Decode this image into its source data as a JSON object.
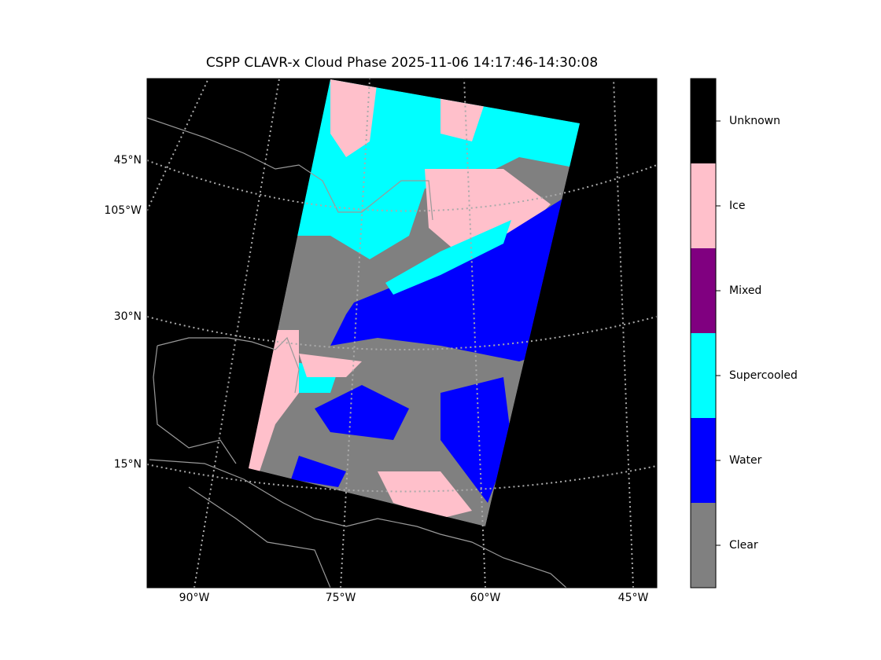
{
  "title": "CSPP CLAVR-x Cloud Phase 2025-11-06 14:17:46-14:30:08",
  "map": {
    "lat_labels": [
      "45°N",
      "105°W",
      "30°N",
      "15°N"
    ],
    "lon_labels": [
      "90°W",
      "75°W",
      "60°W",
      "45°W"
    ]
  },
  "colorbar": {
    "classes": [
      {
        "name": "Clear",
        "color": "#808080"
      },
      {
        "name": "Water",
        "color": "#0000ff"
      },
      {
        "name": "Supercooled",
        "color": "#00ffff"
      },
      {
        "name": "Mixed",
        "color": "#800080"
      },
      {
        "name": "Ice",
        "color": "#ffc0cb"
      },
      {
        "name": "Unknown",
        "color": "#000000"
      }
    ]
  }
}
